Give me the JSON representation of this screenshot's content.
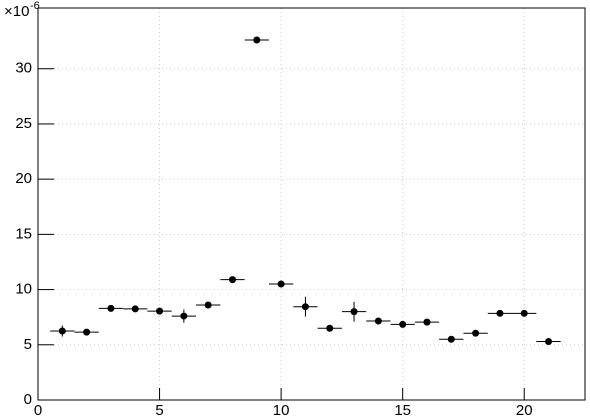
{
  "chart_data": {
    "type": "scatter",
    "y_multiplier": "×10",
    "y_exponent": "-6",
    "x": [
      1,
      2,
      3,
      4,
      5,
      6,
      7,
      8,
      9,
      10,
      11,
      12,
      13,
      14,
      15,
      16,
      17,
      18,
      19,
      20,
      21
    ],
    "xerr": [
      0.5,
      0.5,
      0.5,
      0.5,
      0.5,
      0.5,
      0.5,
      0.5,
      0.5,
      0.5,
      0.5,
      0.5,
      0.5,
      0.5,
      0.5,
      0.5,
      0.5,
      0.5,
      0.5,
      0.5,
      0.5
    ],
    "values": [
      6.25,
      6.15,
      8.3,
      8.25,
      8.05,
      7.6,
      8.6,
      10.9,
      32.6,
      10.5,
      8.45,
      6.5,
      8.0,
      7.15,
      6.85,
      7.05,
      5.5,
      6.05,
      7.85,
      7.85,
      5.3
    ],
    "yerr": [
      0.5,
      0.2,
      0.2,
      0.2,
      0.3,
      0.6,
      0.3,
      0.2,
      0.2,
      0.2,
      0.9,
      0.2,
      0.9,
      0.2,
      0.2,
      0.2,
      0.2,
      0.2,
      0.2,
      0.2,
      0.2
    ],
    "color": "#000000",
    "xlim": [
      0,
      22.5
    ],
    "ylim": [
      0,
      35.5
    ],
    "xticks": [
      0,
      5,
      10,
      15,
      20
    ],
    "yticks": [
      0,
      5,
      10,
      15,
      20,
      25,
      30
    ],
    "grid": true
  }
}
